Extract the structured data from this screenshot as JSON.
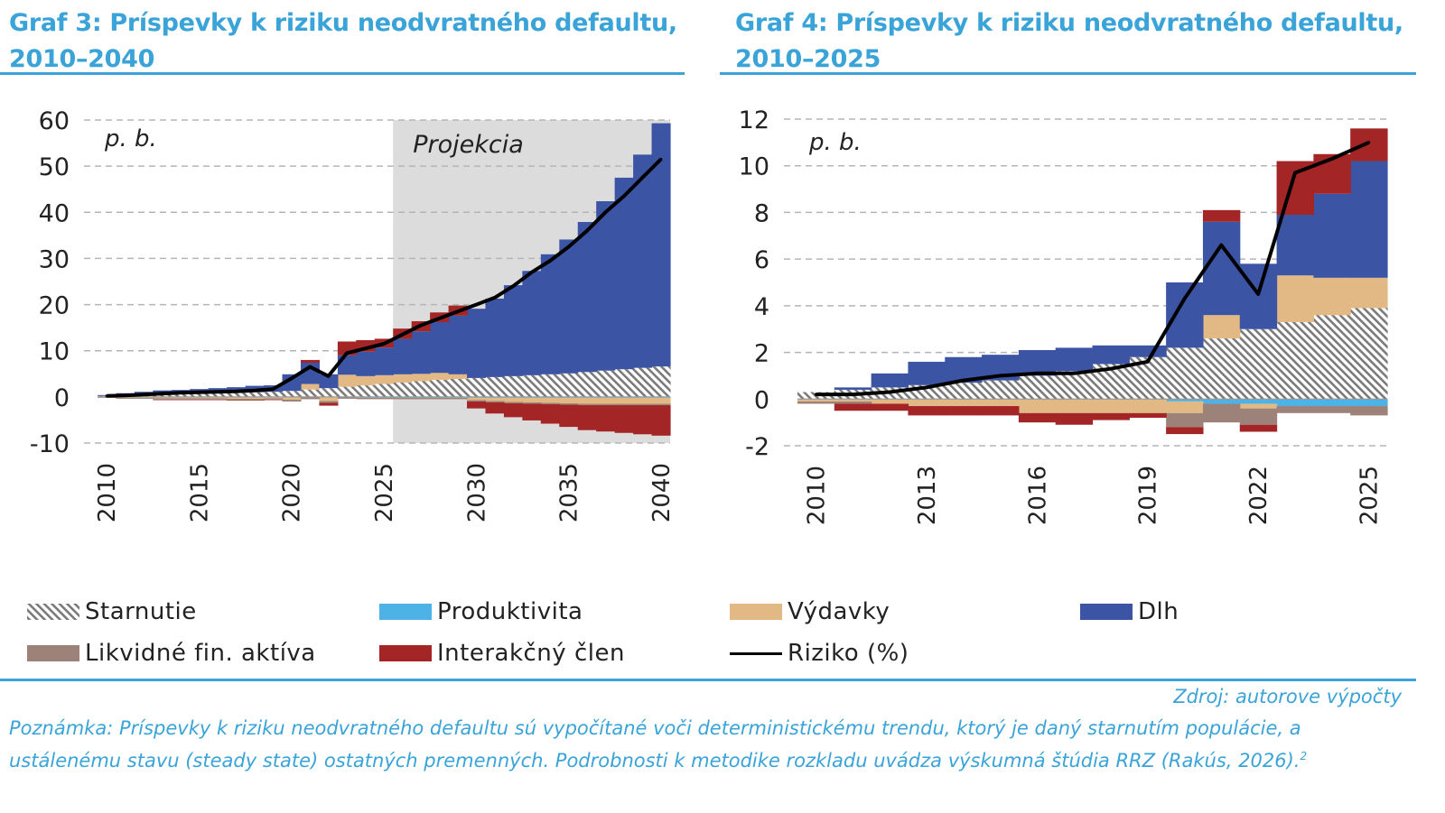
{
  "panels": [
    {
      "title": "Graf 3: Príspevky k riziku neodvratného defaultu, 2010–2040"
    },
    {
      "title": "Graf 4: Príspevky k riziku neodvratného defaultu, 2010–2025"
    }
  ],
  "chart_data": [
    {
      "type": "bar",
      "stacked": true,
      "title": "Graf 3: Príspevky k riziku neodvratného defaultu, 2010–2040",
      "unit_label": "p. b.",
      "annotation": "Projekcia",
      "projection_from": 2026,
      "ylim": [
        -10,
        60
      ],
      "yticks": [
        60,
        50,
        40,
        30,
        20,
        10,
        0,
        -10
      ],
      "xticks": [
        "2010",
        "2015",
        "2020",
        "2025",
        "2030",
        "2035",
        "2040"
      ],
      "x": [
        2010,
        2011,
        2012,
        2013,
        2014,
        2015,
        2016,
        2017,
        2018,
        2019,
        2020,
        2021,
        2022,
        2023,
        2024,
        2025,
        2026,
        2027,
        2028,
        2029,
        2030,
        2031,
        2032,
        2033,
        2034,
        2035,
        2036,
        2037,
        2038,
        2039,
        2040
      ],
      "series": [
        {
          "name": "Starnutie",
          "color": "#7a7a7a",
          "pattern": "hatch",
          "values": [
            0.2,
            0.3,
            0.4,
            0.5,
            0.6,
            0.7,
            0.8,
            0.9,
            1.0,
            1.1,
            1.3,
            1.6,
            1.9,
            2.2,
            2.5,
            2.8,
            3.1,
            3.4,
            3.7,
            3.9,
            4.1,
            4.3,
            4.5,
            4.7,
            4.9,
            5.1,
            5.4,
            5.7,
            6.0,
            6.3,
            6.6
          ]
        },
        {
          "name": "Produktivita",
          "color": "#4db3e6",
          "values": [
            0,
            0,
            0,
            0,
            0,
            0,
            0,
            0,
            0,
            0,
            -0.1,
            -0.1,
            -0.1,
            -0.1,
            -0.2,
            -0.2,
            -0.2,
            -0.2,
            -0.2,
            -0.2,
            -0.2,
            -0.2,
            -0.2,
            -0.2,
            -0.2,
            -0.2,
            -0.2,
            -0.2,
            -0.2,
            -0.2,
            -0.2
          ]
        },
        {
          "name": "Výdavky",
          "color": "#e2b985",
          "values": [
            -0.1,
            -0.2,
            -0.2,
            -0.3,
            -0.3,
            -0.3,
            -0.3,
            -0.4,
            -0.4,
            -0.3,
            -0.5,
            1.2,
            -0.8,
            2.6,
            2.0,
            1.9,
            1.8,
            1.6,
            1.5,
            1.0,
            -0.5,
            -0.7,
            -0.9,
            -1.0,
            -1.1,
            -1.2,
            -1.3,
            -1.3,
            -1.3,
            -1.3,
            -1.3
          ]
        },
        {
          "name": "Dlh",
          "color": "#3b54a3",
          "values": [
            0.2,
            0.5,
            0.7,
            0.9,
            0.9,
            1.0,
            1.1,
            1.2,
            1.4,
            1.4,
            3.6,
            4.6,
            3.0,
            4.2,
            5.3,
            6.0,
            7.7,
            9.2,
            11.0,
            12.7,
            15.0,
            17.0,
            19.7,
            22.6,
            26.0,
            29.0,
            32.5,
            36.7,
            41.5,
            46.2,
            52.7
          ]
        },
        {
          "name": "Likvidné fin. aktíva",
          "color": "#9c8278",
          "values": [
            -0.1,
            -0.2,
            -0.2,
            -0.3,
            -0.3,
            -0.3,
            -0.3,
            -0.3,
            -0.3,
            -0.3,
            -0.4,
            -0.4,
            -0.4,
            -0.3,
            -0.3,
            -0.3,
            -0.3,
            -0.3,
            -0.3,
            -0.3,
            -0.3,
            -0.3,
            -0.3,
            -0.3,
            -0.3,
            -0.3,
            -0.3,
            -0.3,
            -0.3,
            -0.3,
            -0.3
          ]
        },
        {
          "name": "Interakčný člen",
          "color": "#a32525",
          "values": [
            0,
            0,
            0,
            -0.1,
            -0.1,
            -0.1,
            -0.1,
            -0.1,
            -0.1,
            -0.1,
            0,
            0.6,
            -0.6,
            3.0,
            2.5,
            1.9,
            2.2,
            2.2,
            2.1,
            2.2,
            -1.5,
            -2.4,
            -3.0,
            -3.6,
            -4.2,
            -4.8,
            -5.4,
            -5.7,
            -6.0,
            -6.3,
            -6.6
          ]
        }
      ],
      "line": {
        "name": "Riziko (%)",
        "color": "#000000",
        "values": [
          0.2,
          0.3,
          0.5,
          0.7,
          0.9,
          1.0,
          1.1,
          1.2,
          1.4,
          1.7,
          4.0,
          6.5,
          4.5,
          9.5,
          10.5,
          11.5,
          13.5,
          15.5,
          17.0,
          18.5,
          20.0,
          21.5,
          24.0,
          27.0,
          29.5,
          32.5,
          36.0,
          40.0,
          43.5,
          47.5,
          51.5
        ]
      }
    },
    {
      "type": "bar",
      "stacked": true,
      "title": "Graf 4: Príspevky k riziku neodvratného defaultu, 2010–2025",
      "unit_label": "p. b.",
      "ylim": [
        -2,
        12
      ],
      "yticks": [
        12,
        10,
        8,
        6,
        4,
        2,
        0,
        -2
      ],
      "xticks": [
        "2010",
        "2013",
        "2016",
        "2019",
        "2022",
        "2025"
      ],
      "x": [
        2010,
        2011,
        2012,
        2013,
        2014,
        2015,
        2016,
        2017,
        2018,
        2019,
        2020,
        2021,
        2022,
        2023,
        2024,
        2025
      ],
      "series": [
        {
          "name": "Starnutie",
          "color": "#7a7a7a",
          "pattern": "hatch",
          "values": [
            0.3,
            0.4,
            0.5,
            0.6,
            0.7,
            0.8,
            1.0,
            1.2,
            1.5,
            1.8,
            2.2,
            2.6,
            3.0,
            3.3,
            3.6,
            3.9
          ]
        },
        {
          "name": "Produktivita",
          "color": "#4db3e6",
          "values": [
            0,
            0,
            0,
            0,
            0,
            0,
            0,
            0,
            0,
            0,
            -0.1,
            -0.2,
            -0.2,
            -0.3,
            -0.3,
            -0.3
          ]
        },
        {
          "name": "Výdavky",
          "color": "#e2b985",
          "values": [
            -0.1,
            -0.1,
            -0.2,
            -0.3,
            -0.3,
            -0.3,
            -0.6,
            -0.6,
            -0.6,
            -0.6,
            -0.5,
            1.0,
            -0.2,
            2.0,
            1.6,
            1.3
          ]
        },
        {
          "name": "Dlh",
          "color": "#3b54a3",
          "values": [
            0,
            0.1,
            0.6,
            1.0,
            1.1,
            1.1,
            1.1,
            1.0,
            0.8,
            0.5,
            2.8,
            4.0,
            2.8,
            2.6,
            3.6,
            5.0
          ]
        },
        {
          "name": "Likvidné fin. aktíva",
          "color": "#9c8278",
          "values": [
            -0.1,
            -0.1,
            0,
            0,
            0,
            0,
            0,
            0,
            0,
            0,
            -0.6,
            -0.8,
            -0.7,
            -0.3,
            -0.3,
            -0.4
          ]
        },
        {
          "name": "Interakčný člen",
          "color": "#a32525",
          "values": [
            0,
            -0.3,
            -0.3,
            -0.4,
            -0.4,
            -0.4,
            -0.4,
            -0.5,
            -0.3,
            -0.2,
            -0.3,
            0.5,
            -0.3,
            2.3,
            1.7,
            1.4
          ]
        }
      ],
      "line": {
        "name": "Riziko (%)",
        "color": "#000000",
        "values": [
          0.2,
          0.2,
          0.3,
          0.5,
          0.8,
          1.0,
          1.1,
          1.1,
          1.3,
          1.6,
          4.3,
          6.6,
          4.5,
          9.7,
          10.3,
          11.0
        ]
      }
    }
  ],
  "legend": [
    {
      "label": "Starnutie",
      "color": "#7a7a7a",
      "pattern": "hatch"
    },
    {
      "label": "Produktivita",
      "color": "#4db3e6"
    },
    {
      "label": "Výdavky",
      "color": "#e2b985"
    },
    {
      "label": "Dlh",
      "color": "#3b54a3"
    },
    {
      "label": "Likvidné fin. aktíva",
      "color": "#9c8278"
    },
    {
      "label": "Interakčný člen",
      "color": "#a32525"
    },
    {
      "label": "Riziko (%)",
      "color": "#000000",
      "line": true
    }
  ],
  "source": "Zdroj: autorove výpočty",
  "note": "Poznámka: Príspevky k riziku neodvratného defaultu sú vypočítané voči deterministickému trendu, ktorý je daný starnutím populácie, a ustálenému stavu (steady state) ostatných premenných. Podrobnosti k metodike rozkladu uvádza výskumná štúdia RRZ (Rakús, 2026).",
  "note_sup": "2"
}
